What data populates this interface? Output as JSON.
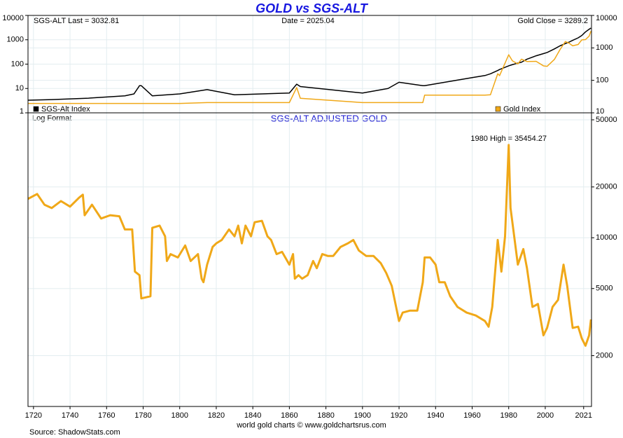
{
  "chart_data": [
    {
      "type": "line",
      "title": "GOLD vs SGS-ALT",
      "annotations": [
        "SGS-ALT Last = 3032.81",
        "Date = 2025.04",
        "Gold Close = 3289.2"
      ],
      "log_scale": true,
      "grid": true,
      "xlim": [
        1717,
        2025.3
      ],
      "ylim": [
        1,
        10000
      ],
      "yticks": [
        1,
        10,
        100,
        1000,
        10000
      ],
      "y2lim": [
        10,
        10000
      ],
      "y2ticks": [
        10,
        100,
        1000,
        10000
      ],
      "x": [
        1717,
        1730,
        1750,
        1770,
        1775,
        1778,
        1779,
        1785,
        1800,
        1815,
        1830,
        1860,
        1864,
        1866,
        1900,
        1914,
        1920,
        1933,
        1934,
        1945,
        1960,
        1967,
        1970,
        1974,
        1975,
        1980,
        1982,
        1985,
        1987,
        1990,
        1995,
        1999,
        2001,
        2005,
        2008,
        2011,
        2013,
        2015,
        2018,
        2020,
        2022,
        2024,
        2025
      ],
      "series": [
        {
          "name": "SGS-Alt Index",
          "color": "#000000",
          "axis": "y",
          "values": [
            3.3,
            3.5,
            4,
            5,
            6,
            13,
            13,
            5,
            6,
            9,
            5.5,
            6.5,
            15,
            12,
            6.5,
            10,
            18,
            13,
            13,
            18,
            28,
            34,
            40,
            55,
            60,
            85,
            95,
            110,
            120,
            160,
            220,
            270,
            300,
            420,
            560,
            700,
            800,
            950,
            1200,
            1500,
            2100,
            2700,
            3032.81
          ]
        },
        {
          "name": "Gold Index",
          "color": "#f0a818",
          "axis": "y2",
          "values": [
            19.4,
            19.4,
            19.4,
            19.4,
            19.4,
            19.4,
            19.4,
            19.4,
            19.4,
            20.67,
            20.67,
            20.67,
            60,
            28,
            20.67,
            20.67,
            20.67,
            20.67,
            35,
            35,
            35,
            35,
            36,
            160,
            140,
            615,
            400,
            320,
            450,
            380,
            385,
            280,
            270,
            440,
            870,
            1570,
            1400,
            1160,
            1270,
            1770,
            1800,
            2300,
            3289.2
          ]
        }
      ]
    },
    {
      "type": "line",
      "title": "SGS-ALT ADJUSTED  GOLD",
      "subtitle": "Log Format",
      "annotation": "1980 High = 35454.27",
      "source": "Source: ShadowStats.com",
      "credit": "world gold charts © www.goldchartsrus.com",
      "log_scale": true,
      "grid": true,
      "xlim": [
        1717,
        2025.3
      ],
      "xticks": [
        1720,
        1740,
        1760,
        1780,
        1800,
        1820,
        1840,
        1860,
        1880,
        1900,
        1920,
        1940,
        1960,
        1980,
        2000,
        2021
      ],
      "ylim": [
        1000,
        55000
      ],
      "yticks": [
        2000,
        5000,
        10000,
        20000,
        50000
      ],
      "x": [
        1717,
        1722,
        1726,
        1730,
        1735,
        1740,
        1745,
        1747,
        1748,
        1752,
        1757,
        1762,
        1767,
        1770,
        1774,
        1775.5,
        1778,
        1779,
        1784,
        1785,
        1789,
        1792,
        1793,
        1795,
        1799,
        1803,
        1806,
        1810,
        1812,
        1813,
        1815,
        1818,
        1820,
        1823,
        1827,
        1830,
        1832,
        1834,
        1836,
        1839,
        1841,
        1845,
        1848,
        1850,
        1853,
        1856,
        1860,
        1862,
        1863,
        1865,
        1867,
        1870,
        1873,
        1875,
        1878,
        1881,
        1884,
        1888,
        1892,
        1895,
        1898,
        1902,
        1906,
        1910,
        1913,
        1916,
        1920,
        1922,
        1926,
        1930,
        1933,
        1934,
        1937,
        1940,
        1942,
        1945,
        1948,
        1952,
        1957,
        1962,
        1967,
        1969,
        1971,
        1974,
        1976,
        1978,
        1980,
        1981,
        1983,
        1985,
        1988,
        1990,
        1993,
        1996,
        1999,
        2001,
        2004,
        2007,
        2010,
        2012,
        2015,
        2018,
        2020,
        2022,
        2024,
        2025
      ],
      "series": [
        {
          "name": "SGS-ALT Adjusted Gold",
          "color": "#f0a818",
          "values": [
            17000,
            18170,
            15700,
            15000,
            16500,
            15300,
            17300,
            18000,
            13600,
            15700,
            13000,
            13600,
            13400,
            11200,
            11200,
            6300,
            6000,
            4370,
            4500,
            11450,
            11800,
            10200,
            7280,
            8000,
            7640,
            9000,
            7280,
            8000,
            5720,
            5450,
            6930,
            8820,
            9260,
            9700,
            11200,
            10200,
            11800,
            9260,
            11800,
            10200,
            12360,
            12600,
            10200,
            9700,
            8000,
            8250,
            6930,
            8000,
            5720,
            6000,
            5720,
            6000,
            7280,
            6600,
            8000,
            7800,
            7800,
            8820,
            9260,
            9700,
            8400,
            7800,
            7800,
            7070,
            6180,
            5190,
            3210,
            3600,
            3700,
            3700,
            5450,
            7640,
            7640,
            6930,
            5450,
            5450,
            4500,
            3890,
            3600,
            3460,
            3210,
            2970,
            3890,
            9700,
            6300,
            10200,
            35454.27,
            15000,
            10200,
            6930,
            8570,
            6600,
            3890,
            4050,
            2640,
            2920,
            3890,
            4280,
            6930,
            5190,
            2920,
            2970,
            2530,
            2290,
            2640,
            3280
          ]
        }
      ]
    }
  ]
}
